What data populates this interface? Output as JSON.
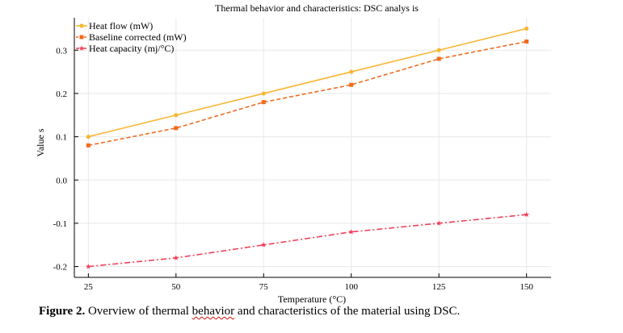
{
  "chart_data": {
    "type": "line",
    "title": "Thermal behavior and characteristics: DSC analys is",
    "xlabel": "Temperature (°C)",
    "ylabel": "Value s",
    "x": [
      25,
      50,
      75,
      100,
      125,
      150
    ],
    "xticks": [
      25,
      50,
      75,
      100,
      125,
      150
    ],
    "xlim": [
      21,
      157
    ],
    "yticks": [
      -0.2,
      -0.1,
      0.0,
      0.1,
      0.2,
      0.3
    ],
    "ytick_labels": [
      "-0.2",
      "-0.1",
      "0.0",
      "0.1",
      "0.2",
      "0.3"
    ],
    "ylim": [
      -0.225,
      0.375
    ],
    "grid": true,
    "legend_position": "top-left",
    "series": [
      {
        "name": "Heat flow (mW)",
        "values": [
          0.1,
          0.15,
          0.2,
          0.25,
          0.3,
          0.35
        ],
        "color": "#f7b733",
        "dash": "solid",
        "marker": "circle"
      },
      {
        "name": "Baseline corrected (mW)",
        "values": [
          0.08,
          0.12,
          0.18,
          0.22,
          0.28,
          0.32
        ],
        "color": "#f26b1d",
        "dash": "dashed",
        "marker": "square"
      },
      {
        "name": "Heat capacity (mj/°C)",
        "values": [
          -0.2,
          -0.18,
          -0.15,
          -0.12,
          -0.1,
          -0.08
        ],
        "color": "#f0405a",
        "dash": "dashdot",
        "marker": "star"
      }
    ]
  },
  "caption": {
    "label": "Figure 2.",
    "text_before": " Overview of thermal ",
    "underlined": "behavior",
    "text_after": " and characteristics of the material using DSC."
  }
}
